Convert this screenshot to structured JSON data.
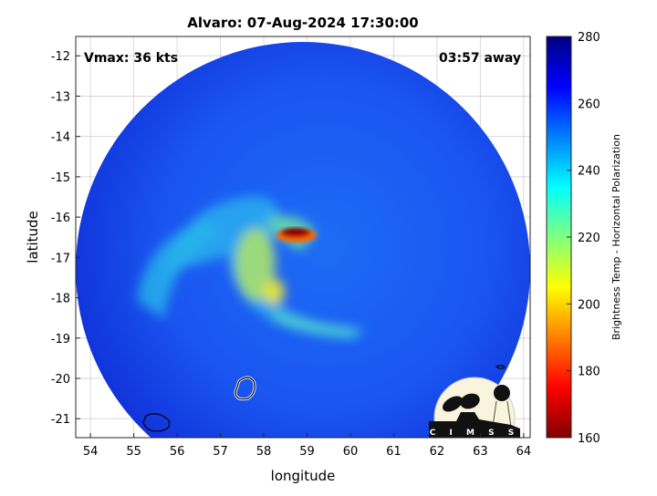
{
  "title": "Alvaro: 07-Aug-2024 17:30:00",
  "annotations": {
    "vmax": "Vmax: 36 kts",
    "away": "03:57 away"
  },
  "logo_text": "CIMSS",
  "chart_data": {
    "type": "heatmap",
    "title": "Alvaro: 07-Aug-2024 17:30:00",
    "xlabel": "longitude",
    "ylabel": "latitude",
    "xlim": [
      53.66,
      64.15
    ],
    "ylim": [
      -21.47,
      -11.52
    ],
    "xticks": [
      54,
      55,
      56,
      57,
      58,
      59,
      60,
      61,
      62,
      63,
      64
    ],
    "yticks": [
      -12,
      -13,
      -14,
      -15,
      -16,
      -17,
      -18,
      -19,
      -20,
      -21
    ],
    "grid": true,
    "colorbar": {
      "label": "Brightness Temp - Horizontal Polarization",
      "range": [
        160,
        280
      ],
      "ticks": [
        160,
        180,
        200,
        220,
        240,
        260,
        280
      ],
      "colormap": "jet"
    },
    "storm_center": {
      "lon": 58.7,
      "lat": -16.4
    },
    "coldest_core_value": 165
  },
  "colors": {
    "background_swath": "#1a50f0",
    "ocean_outside": "#ffffff",
    "core": "#8b0000"
  }
}
